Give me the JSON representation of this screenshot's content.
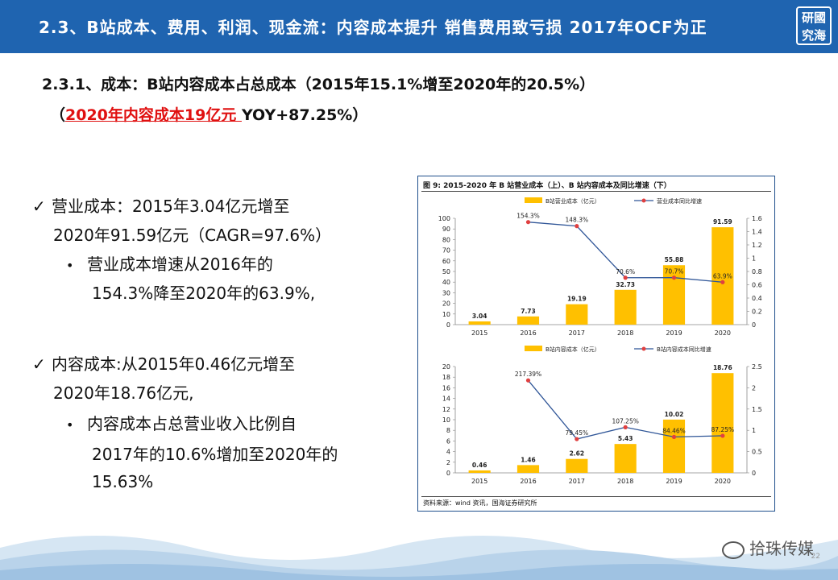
{
  "header": {
    "title": "2.3、B站成本、费用、利润、现金流：内容成本提升 销售费用致亏损  2017年OCF为正",
    "logo_text": "研究国海"
  },
  "subtitle": {
    "line1": "2.3.1、成本：B站内容成本占总成本（2015年15.1%增至2020年的20.5%）",
    "line2_open": "（",
    "line2_red": "2020年内容成本19亿元 ",
    "line2_rest": " YOY+87.25%）"
  },
  "bullets": {
    "b1_line1": "营业成本：2015年3.04亿元增至",
    "b1_line2": "2020年91.59亿元（CAGR=97.6%）",
    "b1_sub1": "营业成本增速从2016年的",
    "b1_sub2": "154.3%降至2020年的63.9%,",
    "b2_line1": "内容成本:从2015年0.46亿元增至",
    "b2_line2": "2020年18.76亿元,",
    "b2_sub1": "内容成本占总营业收入比例自",
    "b2_sub2": "2017年的10.6%增加至2020年的",
    "b2_sub3": "15.63%",
    "check": "✓",
    "dot": "•"
  },
  "chart_box": {
    "title": "图 9:  2015-2020 年 B 站营业成本（上）、B 站内容成本及同比增速（下）",
    "source": "资料来源：wind 资讯，国海证券研究所"
  },
  "chart_data": [
    {
      "type": "bar",
      "categories": [
        "2015",
        "2016",
        "2017",
        "2018",
        "2019",
        "2020"
      ],
      "series": [
        {
          "name": "B站营业成本（亿元）",
          "type": "bar",
          "axis": "left",
          "values": [
            3.04,
            7.73,
            19.19,
            32.73,
            55.88,
            91.59
          ],
          "labels": [
            "3.04",
            "7.73",
            "19.19",
            "32.73",
            "55.88",
            "91.59"
          ]
        },
        {
          "name": "营业成本同比增速",
          "type": "line",
          "axis": "right",
          "values": [
            null,
            1.543,
            1.483,
            0.706,
            0.707,
            0.639
          ],
          "labels": [
            "",
            "154.3%",
            "148.3%",
            "70.6%",
            "70.7%",
            "63.9%"
          ]
        }
      ],
      "ylim": [
        0,
        100
      ],
      "yticks": [
        0,
        10,
        20,
        30,
        40,
        50,
        60,
        70,
        80,
        90,
        100
      ],
      "y2lim": [
        0,
        1.6
      ],
      "y2ticks": [
        "0",
        "0.2",
        "0.4",
        "0.6",
        "0.8",
        "1",
        "1.2",
        "1.4",
        "1.6"
      ],
      "colors": {
        "bar": "#ffc000",
        "line": "#2f5597"
      }
    },
    {
      "type": "bar",
      "categories": [
        "2015",
        "2016",
        "2017",
        "2018",
        "2019",
        "2020"
      ],
      "series": [
        {
          "name": "B站内容成本（亿元）",
          "type": "bar",
          "axis": "left",
          "values": [
            0.46,
            1.46,
            2.62,
            5.43,
            10.02,
            18.76
          ],
          "labels": [
            "0.46",
            "1.46",
            "2.62",
            "5.43",
            "10.02",
            "18.76"
          ]
        },
        {
          "name": "B站内容成本同比增速",
          "type": "line",
          "axis": "right",
          "values": [
            null,
            2.1739,
            0.7945,
            1.0725,
            0.8446,
            0.8725
          ],
          "labels": [
            "",
            "217.39%",
            "79.45%",
            "107.25%",
            "84.46%",
            "87.25%"
          ]
        }
      ],
      "ylim": [
        0,
        20
      ],
      "yticks": [
        0,
        2,
        4,
        6,
        8,
        10,
        12,
        14,
        16,
        18,
        20
      ],
      "y2lim": [
        0,
        2.5
      ],
      "y2ticks": [
        "0",
        "0.5",
        "1",
        "1.5",
        "2",
        "2.5"
      ],
      "colors": {
        "bar": "#ffc000",
        "line": "#2f5597"
      }
    }
  ],
  "footer": {
    "brand": "拾珠传媒",
    "page": "22"
  }
}
